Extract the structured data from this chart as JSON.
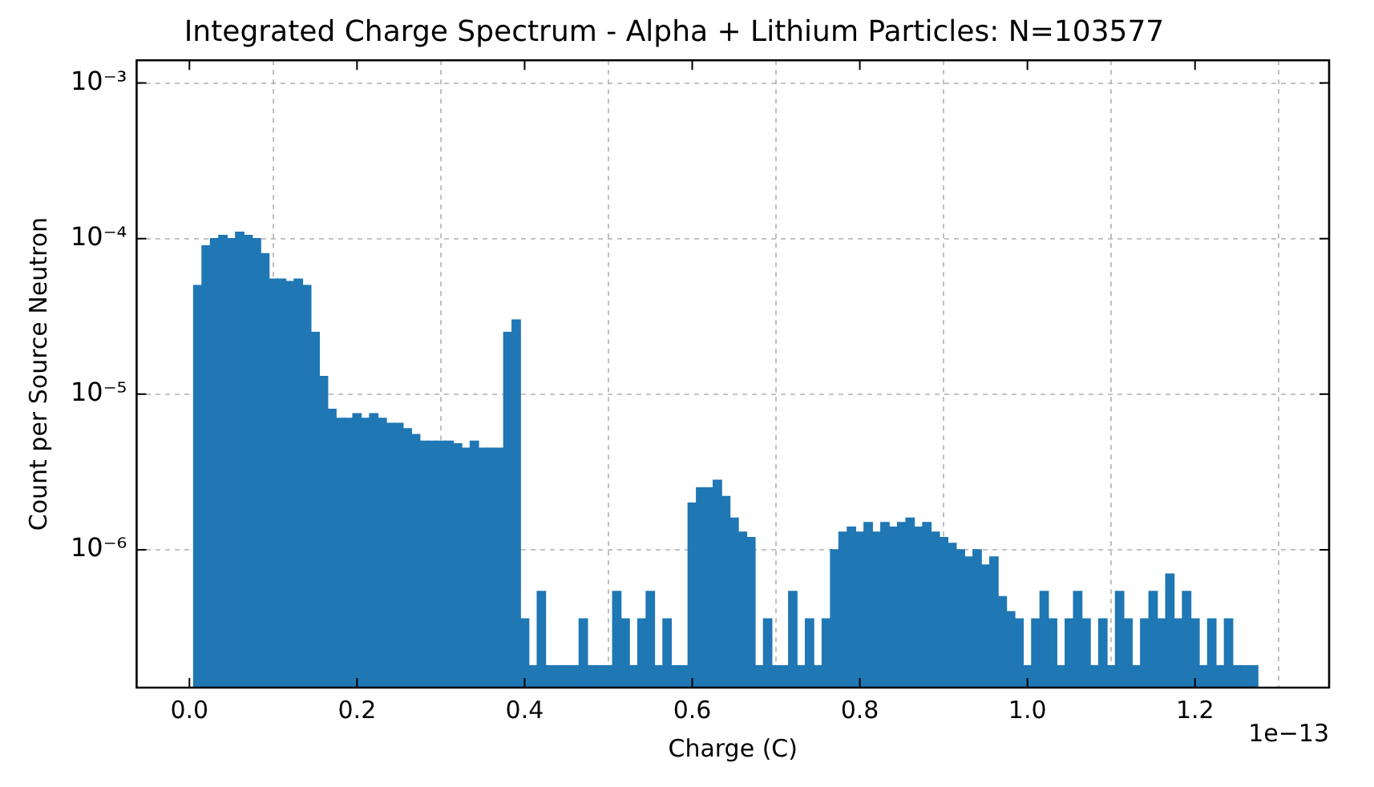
{
  "chart_data": {
    "type": "histogram",
    "title": "Integrated Charge Spectrum - Alpha + Lithium Particles: N=103577",
    "xlabel": "Charge (C)",
    "ylabel": "Count per Source Neutron",
    "bins": [
      0.005,
      0.015,
      0.025,
      0.035,
      0.045,
      0.055,
      0.065,
      0.075,
      0.085,
      0.095,
      0.105,
      0.115,
      0.125,
      0.135,
      0.145,
      0.155,
      0.165,
      0.175,
      0.185,
      0.195,
      0.205,
      0.215,
      0.225,
      0.235,
      0.245,
      0.255,
      0.265,
      0.275,
      0.285,
      0.295,
      0.305,
      0.315,
      0.325,
      0.335,
      0.345,
      0.355,
      0.365,
      0.375,
      0.385,
      0.395,
      0.405,
      0.415,
      0.425,
      0.435,
      0.445,
      0.455,
      0.465,
      0.475,
      0.485,
      0.495,
      0.505,
      0.515,
      0.525,
      0.535,
      0.545,
      0.555,
      0.565,
      0.575,
      0.585,
      0.595,
      0.605,
      0.615,
      0.625,
      0.635,
      0.645,
      0.655,
      0.665,
      0.675,
      0.685,
      0.695,
      0.705,
      0.715,
      0.725,
      0.735,
      0.745,
      0.755,
      0.765,
      0.775,
      0.785,
      0.795,
      0.805,
      0.815,
      0.825,
      0.835,
      0.845,
      0.855,
      0.865,
      0.875,
      0.885,
      0.895,
      0.905,
      0.915,
      0.925,
      0.935,
      0.945,
      0.955,
      0.965,
      0.975,
      0.985,
      0.995,
      1.005,
      1.015,
      1.025,
      1.035,
      1.045,
      1.055,
      1.065,
      1.075,
      1.085,
      1.095,
      1.105,
      1.115,
      1.125,
      1.135,
      1.145,
      1.155,
      1.165,
      1.175,
      1.185,
      1.195,
      1.205,
      1.215,
      1.225,
      1.235,
      1.245,
      1.255,
      1.265,
      1.275
    ],
    "values": [
      5e-05,
      9e-05,
      0.0001,
      0.000105,
      0.0001,
      0.00011,
      0.000105,
      0.0001,
      8e-05,
      5.5e-05,
      5.5e-05,
      5.3e-05,
      5.5e-05,
      5e-05,
      2.5e-05,
      1.3e-05,
      8e-06,
      7e-06,
      7e-06,
      7.5e-06,
      7e-06,
      7.5e-06,
      7e-06,
      6.5e-06,
      6.5e-06,
      6e-06,
      5.5e-06,
      5e-06,
      5e-06,
      5e-06,
      5e-06,
      4.8e-06,
      4.5e-06,
      5e-06,
      4.5e-06,
      4.5e-06,
      4.5e-06,
      2.5e-05,
      3e-05,
      3.6e-07,
      1.8e-07,
      5.4e-07,
      1.8e-07,
      1.8e-07,
      1.8e-07,
      1.8e-07,
      3.6e-07,
      1.8e-07,
      1.8e-07,
      1.8e-07,
      5.4e-07,
      3.6e-07,
      1.8e-07,
      3.6e-07,
      5.4e-07,
      1.8e-07,
      3.6e-07,
      1.8e-07,
      1.8e-07,
      2e-06,
      2.5e-06,
      2.5e-06,
      2.8e-06,
      2.2e-06,
      1.6e-06,
      1.3e-06,
      1.2e-06,
      1.8e-07,
      3.6e-07,
      1.8e-07,
      1.8e-07,
      5.4e-07,
      1.8e-07,
      3.6e-07,
      1.8e-07,
      3.6e-07,
      1e-06,
      1.3e-06,
      1.4e-06,
      1.3e-06,
      1.5e-06,
      1.3e-06,
      1.5e-06,
      1.4e-06,
      1.5e-06,
      1.6e-06,
      1.4e-06,
      1.5e-06,
      1.3e-06,
      1.2e-06,
      1.1e-06,
      1e-06,
      9e-07,
      1e-06,
      8e-07,
      9e-07,
      5e-07,
      4e-07,
      3.6e-07,
      1.8e-07,
      3.6e-07,
      5.4e-07,
      3.6e-07,
      1.8e-07,
      3.6e-07,
      5.4e-07,
      3.6e-07,
      1.8e-07,
      3.6e-07,
      1.8e-07,
      5.4e-07,
      3.6e-07,
      1.8e-07,
      3.6e-07,
      5.4e-07,
      3.6e-07,
      7e-07,
      3.6e-07,
      5.4e-07,
      3.6e-07,
      1.8e-07,
      3.6e-07,
      1.8e-07,
      3.6e-07,
      1.8e-07,
      1.8e-07,
      1.8e-07
    ],
    "color": "#1f77b4",
    "xlim": [
      -0.063,
      1.36
    ],
    "xticks": [
      {
        "value": 0,
        "label": "0.0"
      },
      0.2,
      0.4,
      0.6,
      0.8,
      {
        "value": 1,
        "label": "1.0"
      },
      1.2
    ],
    "log": "y",
    "ylim": [
      1.3e-07,
      0.0014
    ],
    "yticks": [
      {
        "value": 1e-06,
        "label": "10⁻⁶"
      },
      {
        "value": 1e-05,
        "label": "10⁻⁵"
      },
      {
        "value": 0.0001,
        "label": "10⁻⁴"
      },
      {
        "value": 0.001,
        "label": "10⁻³"
      }
    ],
    "grid": true,
    "annotations": [
      "1e−13"
    ]
  }
}
